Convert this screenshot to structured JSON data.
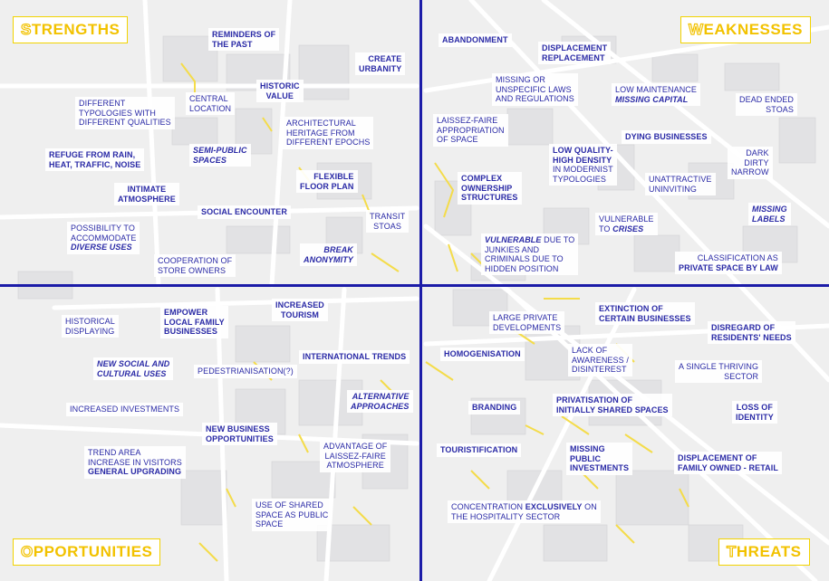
{
  "quadrants": {
    "strengths": {
      "first": "S",
      "rest": "TRENGTHS"
    },
    "weaknesses": {
      "first": "W",
      "rest": "EAKNESSES"
    },
    "opportunities": {
      "first": "O",
      "rest": "PPORTUNITIES"
    },
    "threats": {
      "first": "T",
      "rest": "HREATS"
    }
  },
  "strengths": {
    "reminders": "REMINDERS OF\nTHE PAST",
    "create_urbanity": "CREATE\nURBANITY",
    "historic_value": "HISTORIC\nVALUE",
    "central_location": "CENTRAL\nLOCATION",
    "different_typologies": "DIFFERENT\nTYPOLOGIES WITH\nDIFFERENT QUALITIES",
    "architectural_heritage": "ARCHITECTURAL\nHERITAGE FROM\nDIFFERENT EPOCHS",
    "refuge": "REFUGE FROM RAIN,\nHEAT, TRAFFIC, NOISE",
    "semi_public": "SEMI-PUBLIC\nSPACES",
    "flexible_floor": "FLEXIBLE\nFLOOR PLAN",
    "intimate": "INTIMATE\nATMOSPHERE",
    "social_encounter": "SOCIAL ENCOUNTER",
    "transit_stoas": "TRANSIT\nSTOAS",
    "diverse_uses_a": "POSSIBILITY TO\nACCOMMODATE",
    "diverse_uses_b": "DIVERSE USES",
    "break_anonymity": "BREAK\nANONYMITY",
    "cooperation": "COOPERATION OF\nSTORE OWNERS"
  },
  "weaknesses": {
    "abandonment": "ABANDONMENT",
    "displacement": "DISPLACEMENT\nREPLACEMENT",
    "missing_laws": "MISSING OR\nUNSPECIFIC LAWS\nAND REGULATIONS",
    "low_maintenance_a": "LOW MAINTENANCE",
    "low_maintenance_b": "MISSING CAPITAL",
    "dead_ended": "DEAD ENDED\nSTOAS",
    "laissez_faire": "LAISSEZ-FAIRE\nAPPROPRIATION\nOF SPACE",
    "dying_businesses": "DYING BUSINESSES",
    "low_quality_a": "LOW QUALITY-\nHIGH DENSITY",
    "low_quality_b": "IN MODERNIST\nTYPOLOGIES",
    "dark_dirty": "DARK\nDIRTY\nNARROW",
    "complex_ownership": "COMPLEX\nOWNERSHIP\nSTRUCTURES",
    "unattractive": "UNATTRACTIVE\nUNINVITING",
    "missing_labels": "MISSING\nLABELS",
    "vulnerable_crises_a": "VULNERABLE\nTO ",
    "vulnerable_crises_b": "CRISES",
    "vulnerable_junkies_a": "VULNERABLE",
    "vulnerable_junkies_b": " DUE TO\nJUNKIES AND\nCRIMINALS DUE TO\nHIDDEN POSITION",
    "classification_a": "CLASSIFICATION AS",
    "classification_b": "PRIVATE SPACE BY LAW"
  },
  "opportunities": {
    "historical_displaying": "HISTORICAL\nDISPLAYING",
    "empower": "EMPOWER\nLOCAL FAMILY\nBUSINESSES",
    "increased_tourism": "INCREASED\nTOURISM",
    "international_trends": "INTERNATIONAL TRENDS",
    "new_social": "NEW SOCIAL AND\nCULTURAL USES",
    "pedestrianisation": "PEDESTRIANISATION(?)",
    "alternative": "ALTERNATIVE\nAPPROACHES",
    "increased_investments": "INCREASED INVESTMENTS",
    "new_business": "NEW BUSINESS\nOPPORTUNITIES",
    "trend_area_a": "TREND AREA\nINCREASE IN VISITORS",
    "trend_area_b": "GENERAL UPGRADING",
    "advantage": "ADVANTAGE OF\nLAISSEZ-FAIRE\nATMOSPHERE",
    "shared_space": "USE OF SHARED\nSPACE AS PUBLIC\nSPACE"
  },
  "threats": {
    "extinction": "EXTINCTION OF\nCERTAIN BUSINESSES",
    "large_private": "LARGE PRIVATE\nDEVELOPMENTS",
    "disregard": "DISREGARD OF\nRESIDENTS' NEEDS",
    "homogenisation": "HOMOGENISATION",
    "lack_awareness": "LACK OF\nAWARENESS /\nDISINTEREST",
    "single_sector": "A SINGLE THRIVING\nSECTOR",
    "branding": "BRANDING",
    "privatisation": "PRIVATISATION OF\nINITIALLY SHARED SPACES",
    "loss_identity": "LOSS OF\nIDENTITY",
    "touristification": "TOURISTIFICATION",
    "missing_public": "MISSING\nPUBLIC\nINVESTMENTS",
    "displacement_family": "DISPLACEMENT OF\nFAMILY OWNED - RETAIL",
    "concentration_a": "CONCENTRATION ",
    "concentration_b": "EXCLUSIVELY",
    "concentration_c": " ON\nTHE HOSPITALITY SECTOR"
  }
}
